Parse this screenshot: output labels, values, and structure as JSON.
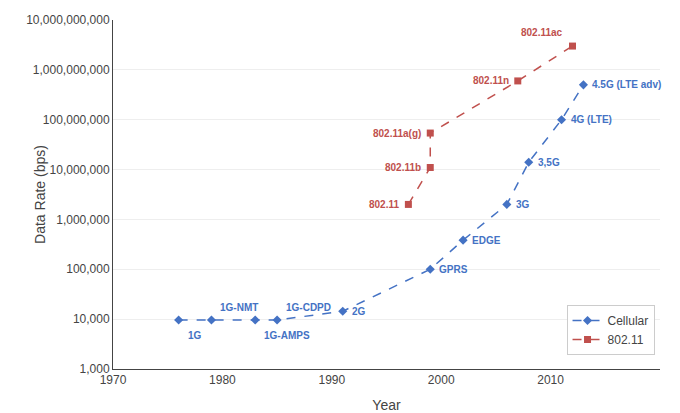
{
  "chart_data": {
    "type": "line",
    "xlabel": "Year",
    "ylabel": "Data Rate (bps)",
    "log": "y",
    "grid": true,
    "legend": "lower right",
    "xlim": [
      1970,
      2020
    ],
    "xticks": [
      1970,
      1980,
      1990,
      2000,
      2010
    ],
    "ylim": [
      1000,
      10000000000
    ],
    "yticks": [
      {
        "value": 1000,
        "label": "1,000"
      },
      {
        "value": 10000,
        "label": "10,000"
      },
      {
        "value": 100000,
        "label": "100,000"
      },
      {
        "value": 1000000,
        "label": "1,000,000"
      },
      {
        "value": 10000000,
        "label": "10,000,000"
      },
      {
        "value": 100000000,
        "label": "100,000,000"
      },
      {
        "value": 1000000000,
        "label": "1,000,000,000"
      },
      {
        "value": 10000000000,
        "label": "10,000,000,000"
      }
    ],
    "series": [
      {
        "name": "Cellular",
        "color": "#4472C4",
        "marker": "diamond",
        "line_style": "dashed",
        "x": [
          1976,
          1979,
          1983,
          1985,
          1991,
          1999,
          2002,
          2006,
          2008,
          2011,
          2013
        ],
        "values": [
          9600,
          9600,
          9600,
          9600,
          14400,
          100000,
          384000,
          2000000,
          14000000,
          100000000,
          500000000
        ],
        "annotations": [
          "1G",
          "1G-NMT",
          "1G-AMPS",
          "1G-CDPD",
          "2G",
          "GPRS",
          "EDGE",
          "3G",
          "3,5G",
          "4G (LTE)",
          "4.5G (LTE adv)"
        ]
      },
      {
        "name": "802.11",
        "color": "#C0504D",
        "marker": "square",
        "line_style": "dashed",
        "x": [
          1997,
          1999,
          1999,
          2007,
          2012
        ],
        "values": [
          2000000,
          11000000,
          54000000,
          600000000,
          3000000000
        ],
        "annotations": [
          "802.11",
          "802.11b",
          "802.11a(g)",
          "802.11n",
          "802.11ac"
        ]
      }
    ]
  }
}
